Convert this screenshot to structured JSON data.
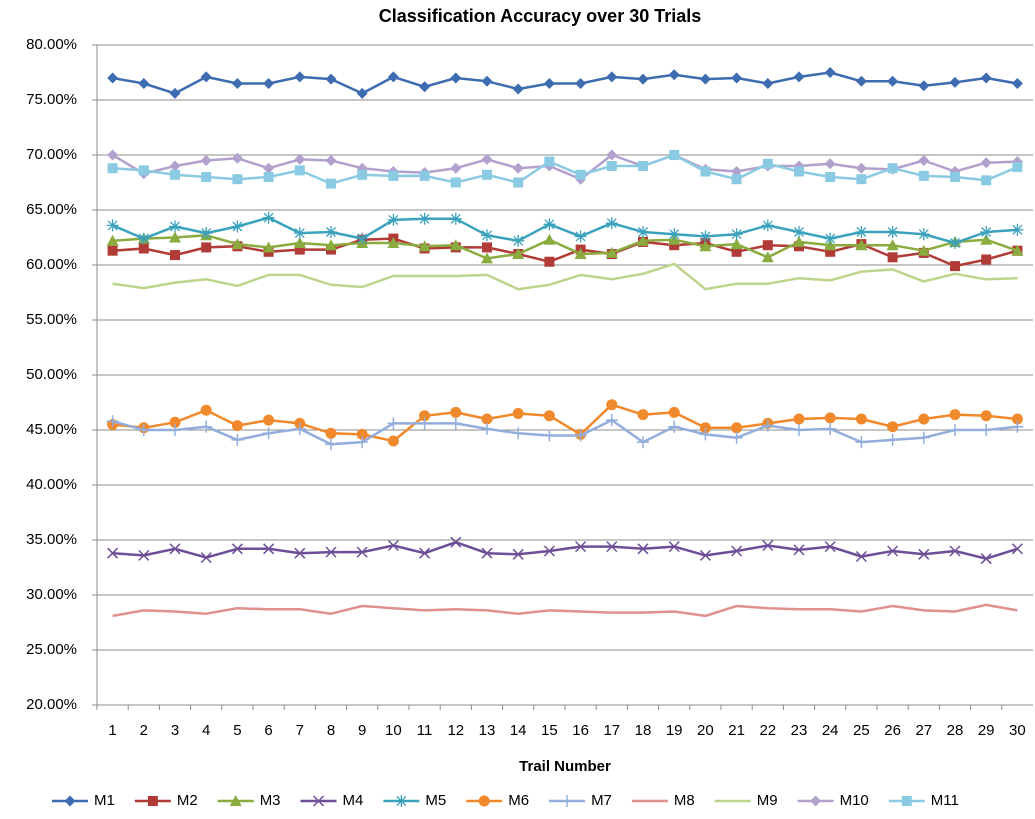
{
  "chart_data": {
    "type": "line",
    "title": "Classification Accuracy over 30 Trials",
    "x_label": "Trail Number",
    "categories": [
      1,
      2,
      3,
      4,
      5,
      6,
      7,
      8,
      9,
      10,
      11,
      12,
      13,
      14,
      15,
      16,
      17,
      18,
      19,
      20,
      21,
      22,
      23,
      24,
      25,
      26,
      27,
      28,
      29,
      30
    ],
    "ylim": [
      20,
      80
    ],
    "yticks": [
      {
        "value": 20,
        "label": "20.00%"
      },
      {
        "value": 25,
        "label": "25.00%"
      },
      {
        "value": 30,
        "label": "30.00%"
      },
      {
        "value": 35,
        "label": "35.00%"
      },
      {
        "value": 40,
        "label": "40.00%"
      },
      {
        "value": 45,
        "label": "45.00%"
      },
      {
        "value": 50,
        "label": "50.00%"
      },
      {
        "value": 55,
        "label": "55.00%"
      },
      {
        "value": 60,
        "label": "60.00%"
      },
      {
        "value": 65,
        "label": "65.00%"
      },
      {
        "value": 70,
        "label": "70.00%"
      },
      {
        "value": 75,
        "label": "75.00%"
      },
      {
        "value": 80,
        "label": "80.00%"
      }
    ],
    "grid": true,
    "legend": "bottom",
    "series": [
      {
        "name": "M1",
        "color": "#3d6cb0",
        "marker": "diamond",
        "values": [
          77.0,
          76.5,
          75.6,
          77.1,
          76.5,
          76.5,
          77.1,
          76.9,
          75.6,
          77.1,
          76.2,
          77.0,
          76.7,
          76.0,
          76.5,
          76.5,
          77.1,
          76.9,
          77.3,
          76.9,
          77.0,
          76.5,
          77.1,
          77.5,
          76.7,
          76.7,
          76.3,
          76.6,
          77.0,
          76.5
        ]
      },
      {
        "name": "M2",
        "color": "#b13b37",
        "marker": "square",
        "values": [
          61.3,
          61.5,
          60.9,
          61.6,
          61.7,
          61.2,
          61.4,
          61.4,
          62.3,
          62.4,
          61.5,
          61.6,
          61.6,
          61.0,
          60.3,
          61.4,
          61.0,
          62.1,
          61.8,
          62.0,
          61.2,
          61.8,
          61.7,
          61.2,
          61.9,
          60.7,
          61.1,
          59.9,
          60.5,
          61.3
        ]
      },
      {
        "name": "M3",
        "color": "#8aab3e",
        "marker": "triangle",
        "values": [
          62.2,
          62.4,
          62.5,
          62.7,
          61.9,
          61.6,
          62.0,
          61.8,
          62.0,
          62.0,
          61.7,
          61.8,
          60.6,
          61.0,
          62.3,
          61.0,
          61.1,
          62.2,
          62.3,
          61.7,
          61.9,
          60.7,
          62.1,
          61.8,
          61.8,
          61.8,
          61.3,
          62.1,
          62.3,
          61.3
        ]
      },
      {
        "name": "M4",
        "color": "#6e4e97",
        "marker": "x",
        "values": [
          33.8,
          33.6,
          34.2,
          33.4,
          34.2,
          34.2,
          33.8,
          33.9,
          33.9,
          34.5,
          33.8,
          34.8,
          33.8,
          33.7,
          34.0,
          34.4,
          34.4,
          34.2,
          34.4,
          33.6,
          34.0,
          34.5,
          34.1,
          34.4,
          33.5,
          34.0,
          33.7,
          34.0,
          33.3,
          34.2
        ]
      },
      {
        "name": "M5",
        "color": "#3ba2bd",
        "marker": "asterisk",
        "values": [
          63.6,
          62.4,
          63.5,
          62.9,
          63.5,
          64.3,
          62.9,
          63.0,
          62.4,
          64.1,
          64.2,
          64.2,
          62.7,
          62.2,
          63.7,
          62.6,
          63.8,
          63.0,
          62.8,
          62.6,
          62.8,
          63.6,
          63.0,
          62.4,
          63.0,
          63.0,
          62.8,
          62.0,
          63.0,
          63.2
        ]
      },
      {
        "name": "M6",
        "color": "#f0892b",
        "marker": "circle",
        "values": [
          45.5,
          45.2,
          45.7,
          46.8,
          45.4,
          45.9,
          45.6,
          44.7,
          44.6,
          44.0,
          46.3,
          46.6,
          46.0,
          46.5,
          46.3,
          44.6,
          47.3,
          46.4,
          46.6,
          45.2,
          45.2,
          45.6,
          46.0,
          46.1,
          46.0,
          45.3,
          46.0,
          46.4,
          46.3,
          46.0
        ]
      },
      {
        "name": "M7",
        "color": "#93aedc",
        "marker": "plus",
        "values": [
          45.8,
          45.0,
          45.0,
          45.3,
          44.1,
          44.7,
          45.1,
          43.7,
          43.9,
          45.6,
          45.6,
          45.6,
          45.1,
          44.7,
          44.5,
          44.5,
          45.9,
          43.9,
          45.3,
          44.6,
          44.3,
          45.4,
          45.0,
          45.1,
          43.9,
          44.1,
          44.3,
          45.0,
          45.0,
          45.3
        ]
      },
      {
        "name": "M8",
        "color": "#e0908f",
        "marker": "none",
        "values": [
          28.1,
          28.6,
          28.5,
          28.3,
          28.8,
          28.7,
          28.7,
          28.3,
          29.0,
          28.8,
          28.6,
          28.7,
          28.6,
          28.3,
          28.6,
          28.5,
          28.4,
          28.4,
          28.5,
          28.1,
          29.0,
          28.8,
          28.7,
          28.7,
          28.5,
          29.0,
          28.6,
          28.5,
          29.1,
          28.6
        ]
      },
      {
        "name": "M9",
        "color": "#bdd48b",
        "marker": "none",
        "values": [
          58.3,
          57.9,
          58.4,
          58.7,
          58.1,
          59.1,
          59.1,
          58.2,
          58.0,
          59.0,
          59.0,
          59.0,
          59.1,
          57.8,
          58.2,
          59.1,
          58.7,
          59.2,
          60.1,
          57.8,
          58.3,
          58.3,
          58.8,
          58.6,
          59.4,
          59.6,
          58.5,
          59.2,
          58.7,
          58.8
        ]
      },
      {
        "name": "M10",
        "color": "#b3a1cd",
        "marker": "diamond",
        "values": [
          70.0,
          68.3,
          69.0,
          69.5,
          69.7,
          68.8,
          69.6,
          69.5,
          68.8,
          68.5,
          68.4,
          68.8,
          69.6,
          68.8,
          69.0,
          67.8,
          70.0,
          69.0,
          70.0,
          68.7,
          68.5,
          69.0,
          69.0,
          69.2,
          68.8,
          68.7,
          69.5,
          68.5,
          69.3,
          69.4
        ]
      },
      {
        "name": "M11",
        "color": "#8bcae3",
        "marker": "square",
        "values": [
          68.8,
          68.6,
          68.2,
          68.0,
          67.8,
          68.0,
          68.6,
          67.4,
          68.2,
          68.1,
          68.1,
          67.5,
          68.2,
          67.5,
          69.4,
          68.2,
          69.0,
          69.0,
          70.0,
          68.5,
          67.8,
          69.2,
          68.5,
          68.0,
          67.8,
          68.8,
          68.1,
          68.0,
          67.7,
          68.9
        ]
      }
    ]
  }
}
